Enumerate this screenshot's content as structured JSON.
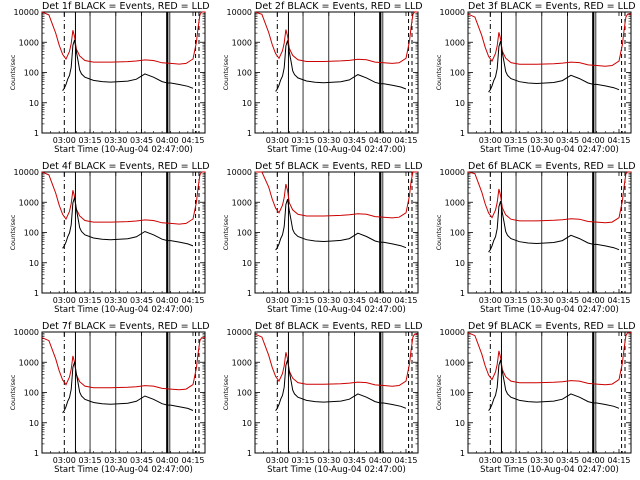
{
  "chart_data": {
    "type": "line",
    "panel_title_suffix": "BLACK = Events, RED = LLD",
    "panel_prefixes": [
      "Det 1f",
      "Det 2f",
      "Det 3f",
      "Det 4f",
      "Det 5f",
      "Det 6f",
      "Det 7f",
      "Det 8f",
      "Det 9f"
    ],
    "xlabel": "Start Time (10-Aug-04 02:47:00)",
    "ylabel": "Counts/sec",
    "x_ticks": [
      "03:00",
      "03:15",
      "03:30",
      "03:45",
      "04:00",
      "04:15"
    ],
    "x_tick_minutes": [
      13,
      28,
      43,
      58,
      73,
      88
    ],
    "xlim_minutes": [
      0,
      95
    ],
    "y_ticks": [
      "1",
      "10",
      "100",
      "1000",
      "10000"
    ],
    "y_tick_values": [
      1,
      10,
      100,
      1000,
      10000
    ],
    "yscale": "log",
    "ylim": [
      1,
      10000
    ],
    "series_colors": {
      "events": "#000000",
      "lld": "#cc0000"
    },
    "lld_series": {
      "x": [
        0,
        4,
        8,
        10,
        12,
        14,
        16,
        17,
        18,
        19,
        20,
        22,
        25,
        30,
        40,
        50,
        55,
        60,
        65,
        70,
        75,
        80,
        84,
        88,
        90,
        91,
        92,
        93,
        95
      ],
      "y": [
        10000,
        8000,
        2000,
        800,
        400,
        280,
        500,
        900,
        2500,
        1500,
        600,
        350,
        250,
        220,
        220,
        230,
        240,
        260,
        250,
        210,
        200,
        190,
        200,
        280,
        1000,
        3000,
        8000,
        10000,
        10000
      ]
    },
    "events_series": {
      "x": [
        12,
        13,
        14,
        15,
        16,
        17,
        18,
        19,
        20,
        21,
        22,
        23,
        25,
        30,
        35,
        40,
        45,
        50,
        55,
        60,
        65,
        70,
        73,
        75,
        80,
        85,
        88
      ],
      "y": [
        25,
        30,
        40,
        60,
        80,
        150,
        800,
        1200,
        500,
        250,
        120,
        90,
        70,
        55,
        50,
        48,
        50,
        52,
        60,
        90,
        70,
        50,
        45,
        45,
        40,
        35,
        30
      ]
    },
    "lld_level_multiplier": [
      1.0,
      1.05,
      0.85,
      1.0,
      1.6,
      1.1,
      0.65,
      0.85,
      0.95
    ],
    "events_level_multiplier": [
      1.0,
      0.95,
      0.9,
      1.2,
      1.05,
      0.9,
      0.85,
      1.0,
      1.0
    ]
  }
}
